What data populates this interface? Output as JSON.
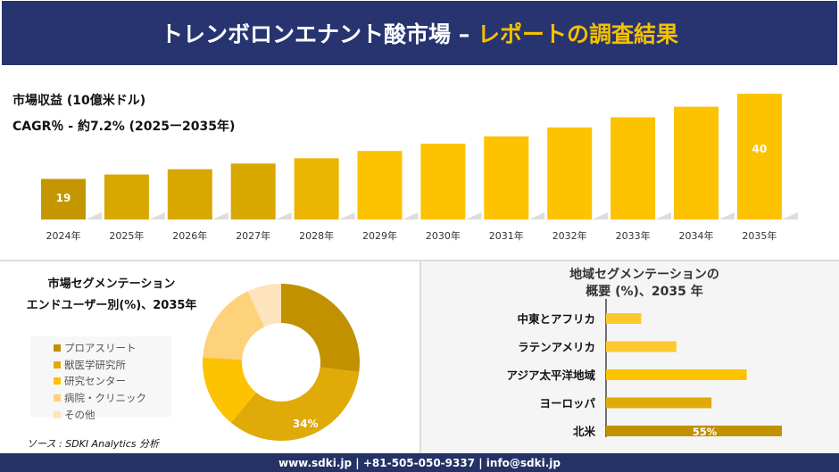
{
  "header": {
    "title_main": "トレンボロンエナント酸市場 –",
    "title_accent": "レポートの調査結果"
  },
  "revenue": {
    "label": "市場収益 (10億米ドル)",
    "cagr": "CAGR％ - 約7.2% (2025ー2035年)"
  },
  "chart_data": [
    {
      "type": "bar",
      "categories": [
        "2024年",
        "2025年",
        "2026年",
        "2027年",
        "2028年",
        "2029年",
        "2030年",
        "2031年",
        "2032年",
        "2033年",
        "2034年",
        "2035年"
      ],
      "values": [
        19,
        20.1,
        21.4,
        22.8,
        24.1,
        25.9,
        27.7,
        29.5,
        31.7,
        34.2,
        36.8,
        40
      ],
      "data_labels": {
        "0": "19",
        "11": "40"
      },
      "ylim": [
        9,
        42
      ],
      "grid": false,
      "colors": [
        "#c49600",
        "#d9a800",
        "#d9a800",
        "#d9a800",
        "#ecb600",
        "#fdc200",
        "#fdc200",
        "#fdc200",
        "#fdc200",
        "#fdc200",
        "#fdc200",
        "#fdc200"
      ]
    },
    {
      "type": "pie",
      "title": "市場セグメンテーション エンドユーザー別(%)、2035年",
      "title_lines": [
        "市場セグメンテーション",
        "エンドユーザー別(%)、2035年"
      ],
      "categories": [
        "プロアスリート",
        "獣医学研究所",
        "研究センター",
        "病院・クリニック",
        "その他"
      ],
      "values": [
        27,
        34,
        15,
        17,
        7
      ],
      "data_labels": {
        "1": "34%"
      },
      "colors": [
        "#c19100",
        "#e0aa08",
        "#fdc200",
        "#fdd27a",
        "#fde4bd"
      ],
      "legend": "left"
    },
    {
      "type": "bar",
      "orientation": "horizontal",
      "title": "地域セグメンテーションの 概要 (%)、2035 年",
      "title_lines": [
        "地域セグメンテーションの",
        "概要 (%)、2035 年"
      ],
      "categories": [
        "中東とアフリカ",
        "ラテンアメリカ",
        "アジア太平洋地域",
        "ヨーロッパ",
        "北米"
      ],
      "values": [
        11,
        22,
        44,
        33,
        55
      ],
      "data_labels": {
        "4": "55%"
      },
      "xlim": [
        0,
        60
      ],
      "colors": [
        "#fdc92e",
        "#fdc92e",
        "#fdc200",
        "#e0aa08",
        "#c19100"
      ]
    }
  ],
  "source": "ソース : SDKI Analytics 分析",
  "footer": "www.sdki.jp | +81-505-050-9337 | info@sdki.jp"
}
